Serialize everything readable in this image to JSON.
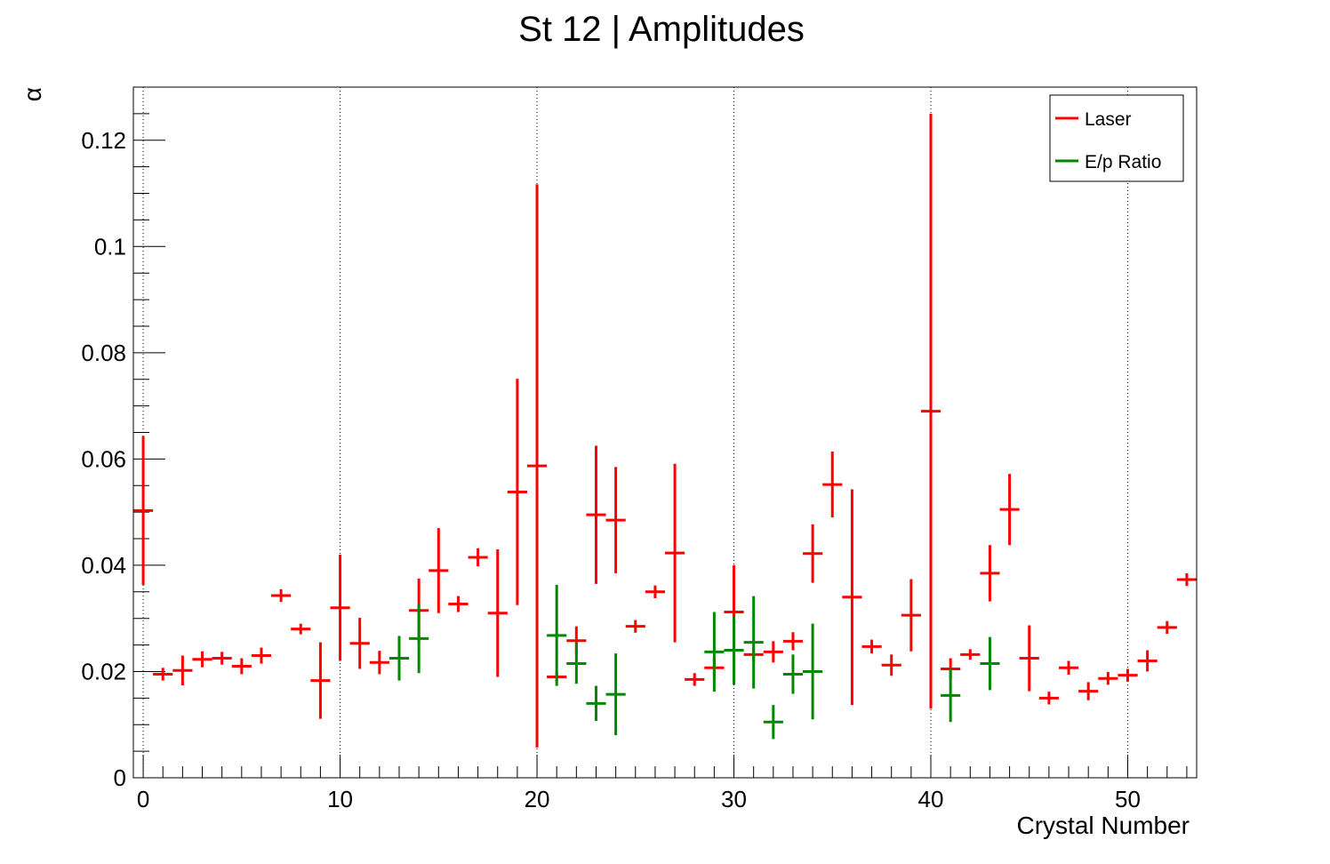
{
  "chart_data": {
    "type": "scatter",
    "title": "St 12 | Amplitudes",
    "xlabel": "Crystal Number",
    "ylabel": "α",
    "xlim": [
      -0.5,
      53.5
    ],
    "ylim": [
      0,
      0.13
    ],
    "x_ticks": [
      0,
      10,
      20,
      30,
      40,
      50
    ],
    "x_tick_labels": [
      "0",
      "10",
      "20",
      "30",
      "40",
      "50"
    ],
    "y_ticks": [
      0,
      0.02,
      0.04,
      0.06,
      0.08,
      0.1,
      0.12
    ],
    "y_tick_labels": [
      "0",
      "0.02",
      "0.04",
      "0.06",
      "0.08",
      "0.1",
      "0.12"
    ],
    "grid": "vertical dotted at major x ticks",
    "legend_position": "top-right",
    "series": [
      {
        "name": "Laser",
        "color": "#ff0000",
        "x": [
          0,
          1,
          2,
          3,
          4,
          5,
          6,
          7,
          8,
          9,
          10,
          11,
          12,
          13,
          14,
          15,
          16,
          17,
          18,
          19,
          20,
          21,
          22,
          23,
          24,
          25,
          26,
          27,
          28,
          29,
          30,
          31,
          32,
          33,
          34,
          35,
          36,
          37,
          38,
          39,
          40,
          41,
          42,
          43,
          44,
          45,
          46,
          47,
          48,
          49,
          50,
          51,
          52,
          53
        ],
        "y": [
          0.0503,
          0.0195,
          0.0202,
          0.0223,
          0.0225,
          0.021,
          0.023,
          0.0343,
          0.028,
          0.0183,
          0.032,
          0.0253,
          0.0217,
          0.0225,
          0.0315,
          0.039,
          0.0327,
          0.0415,
          0.031,
          0.0538,
          0.0587,
          0.019,
          0.0258,
          0.0495,
          0.0485,
          0.0285,
          0.035,
          0.0423,
          0.0185,
          0.0207,
          0.0312,
          0.0232,
          0.0237,
          0.0257,
          0.0422,
          0.0552,
          0.034,
          0.0247,
          0.0212,
          0.0306,
          0.069,
          0.0205,
          0.0232,
          0.0385,
          0.0505,
          0.0225,
          0.015,
          0.0207,
          0.0163,
          0.0187,
          0.0193,
          0.022,
          0.0283,
          0.0373
        ],
        "y_err": [
          0.014,
          0.0012,
          0.0028,
          0.0015,
          0.0012,
          0.0015,
          0.0015,
          0.0012,
          0.001,
          0.0072,
          0.01,
          0.0048,
          0.0022,
          0.002,
          0.006,
          0.008,
          0.0015,
          0.0017,
          0.012,
          0.0213,
          0.053,
          0.001,
          0.0027,
          0.013,
          0.01,
          0.0012,
          0.0012,
          0.0168,
          0.0012,
          0.0017,
          0.0088,
          0.0013,
          0.002,
          0.0017,
          0.0055,
          0.0062,
          0.0203,
          0.0013,
          0.002,
          0.0068,
          0.056,
          0.002,
          0.001,
          0.0053,
          0.0067,
          0.0062,
          0.0012,
          0.0013,
          0.0017,
          0.0012,
          0.0012,
          0.002,
          0.0012,
          0.0012
        ]
      },
      {
        "name": "E/p Ratio",
        "color": "#008800",
        "x": [
          13,
          14,
          21,
          22,
          23,
          24,
          29,
          30,
          31,
          32,
          33,
          34,
          41,
          43
        ],
        "y": [
          0.0225,
          0.0262,
          0.0268,
          0.0215,
          0.014,
          0.0157,
          0.0237,
          0.024,
          0.0255,
          0.0105,
          0.0195,
          0.02,
          0.0155,
          0.0215
        ],
        "y_err": [
          0.0042,
          0.0065,
          0.0095,
          0.0038,
          0.0033,
          0.0077,
          0.0075,
          0.0065,
          0.0087,
          0.0032,
          0.0037,
          0.009,
          0.005,
          0.005
        ]
      }
    ]
  }
}
